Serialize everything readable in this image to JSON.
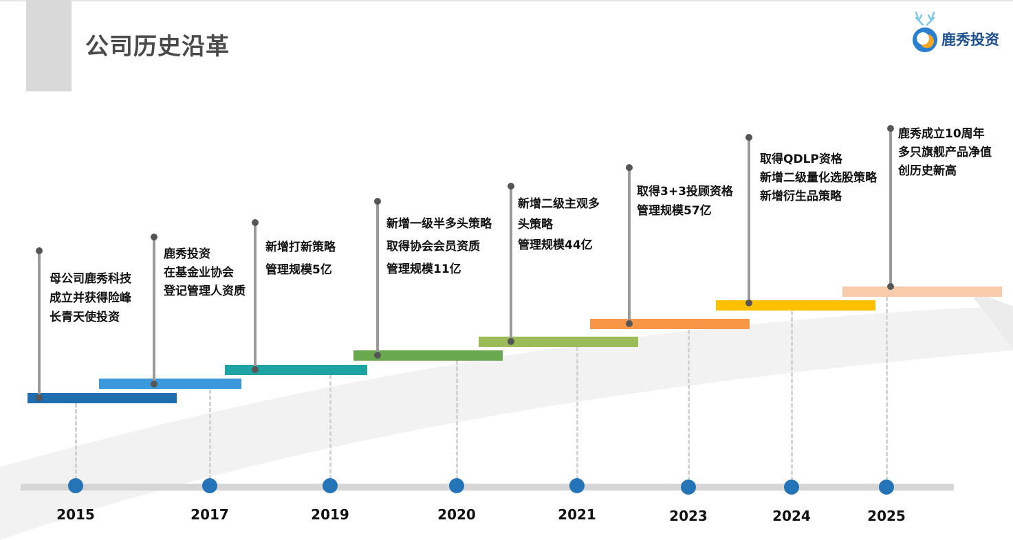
{
  "header": {
    "title": "公司历史沿革",
    "logo_text": "鹿秀投资",
    "logo_icon": "deer-logo-icon"
  },
  "timeline": {
    "milestones": [
      {
        "year": "2015",
        "color": "#1f6eb0",
        "lines": [
          "母公司鹿秀科技",
          "成立并获得险峰",
          "长青天使投资"
        ]
      },
      {
        "year": "2017",
        "color": "#3a98db",
        "lines": [
          "鹿秀投资",
          "在基金业协会",
          "登记管理人资质"
        ]
      },
      {
        "year": "2019",
        "color": "#1ea3a3",
        "lines": [
          "新增打新策略",
          "管理规模5亿"
        ]
      },
      {
        "year": "2020",
        "color": "#6aa84f",
        "lines": [
          "新增一级半多头策略",
          "取得协会会员资质",
          "管理规模11亿"
        ]
      },
      {
        "year": "2021",
        "color": "#9bbb59",
        "lines": [
          "新增二级主观多",
          "头策略",
          "管理规模44亿"
        ]
      },
      {
        "year": "2023",
        "color": "#f79646",
        "lines": [
          "取得3+3投顾资格",
          "管理规模57亿"
        ]
      },
      {
        "year": "2024",
        "color": "#ffc000",
        "lines": [
          "取得QDLP资格",
          "新增二级量化选股策略",
          "新增衍生品策略"
        ]
      },
      {
        "year": "2025",
        "color": "#f8cbad",
        "lines": [
          "鹿秀成立10周年",
          "多只旗舰产品净值",
          "创历史新高"
        ]
      }
    ]
  }
}
